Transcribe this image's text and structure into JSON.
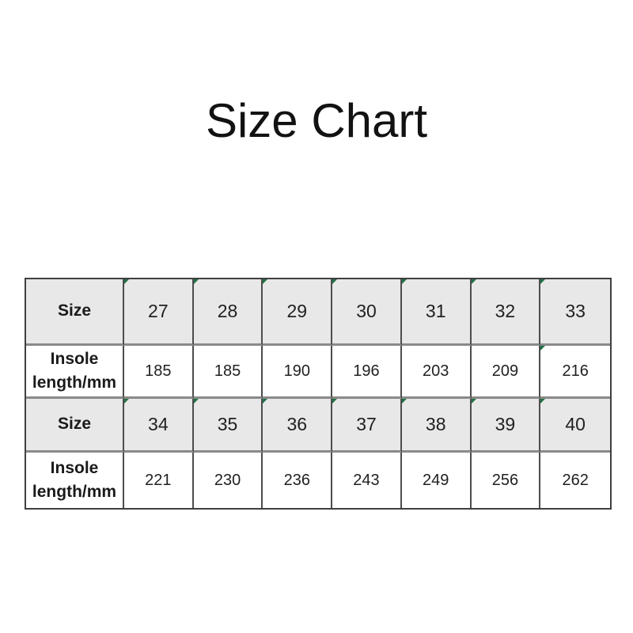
{
  "title": "Size Chart",
  "colors": {
    "background": "#ffffff",
    "header_row_bg": "#e8e8e8",
    "border_outer": "#3f3f3f",
    "border_vertical": "#4d4d4d",
    "border_horizontal": "#8a8a8a",
    "text": "#212121",
    "marker_green": "#217346"
  },
  "table": {
    "rows": [
      {
        "cells": [
          "Size",
          "27",
          "28",
          "29",
          "30",
          "31",
          "32",
          "33"
        ]
      },
      {
        "cells": [
          "Insole length/mm",
          "185",
          "185",
          "190",
          "196",
          "203",
          "209",
          "216"
        ]
      },
      {
        "cells": [
          "Size",
          "34",
          "35",
          "36",
          "37",
          "38",
          "39",
          "40"
        ]
      },
      {
        "cells": [
          "Insole length/mm",
          "221",
          "230",
          "236",
          "243",
          "249",
          "256",
          "262"
        ]
      }
    ]
  },
  "chart_data": {
    "type": "table",
    "title": "Size Chart",
    "columns": [
      "Size",
      "Insole length/mm"
    ],
    "series": [
      {
        "name": "Size",
        "values": [
          27,
          28,
          29,
          30,
          31,
          32,
          33,
          34,
          35,
          36,
          37,
          38,
          39,
          40
        ]
      },
      {
        "name": "Insole length/mm",
        "values": [
          185,
          185,
          190,
          196,
          203,
          209,
          216,
          221,
          230,
          236,
          243,
          249,
          256,
          262
        ]
      }
    ]
  }
}
